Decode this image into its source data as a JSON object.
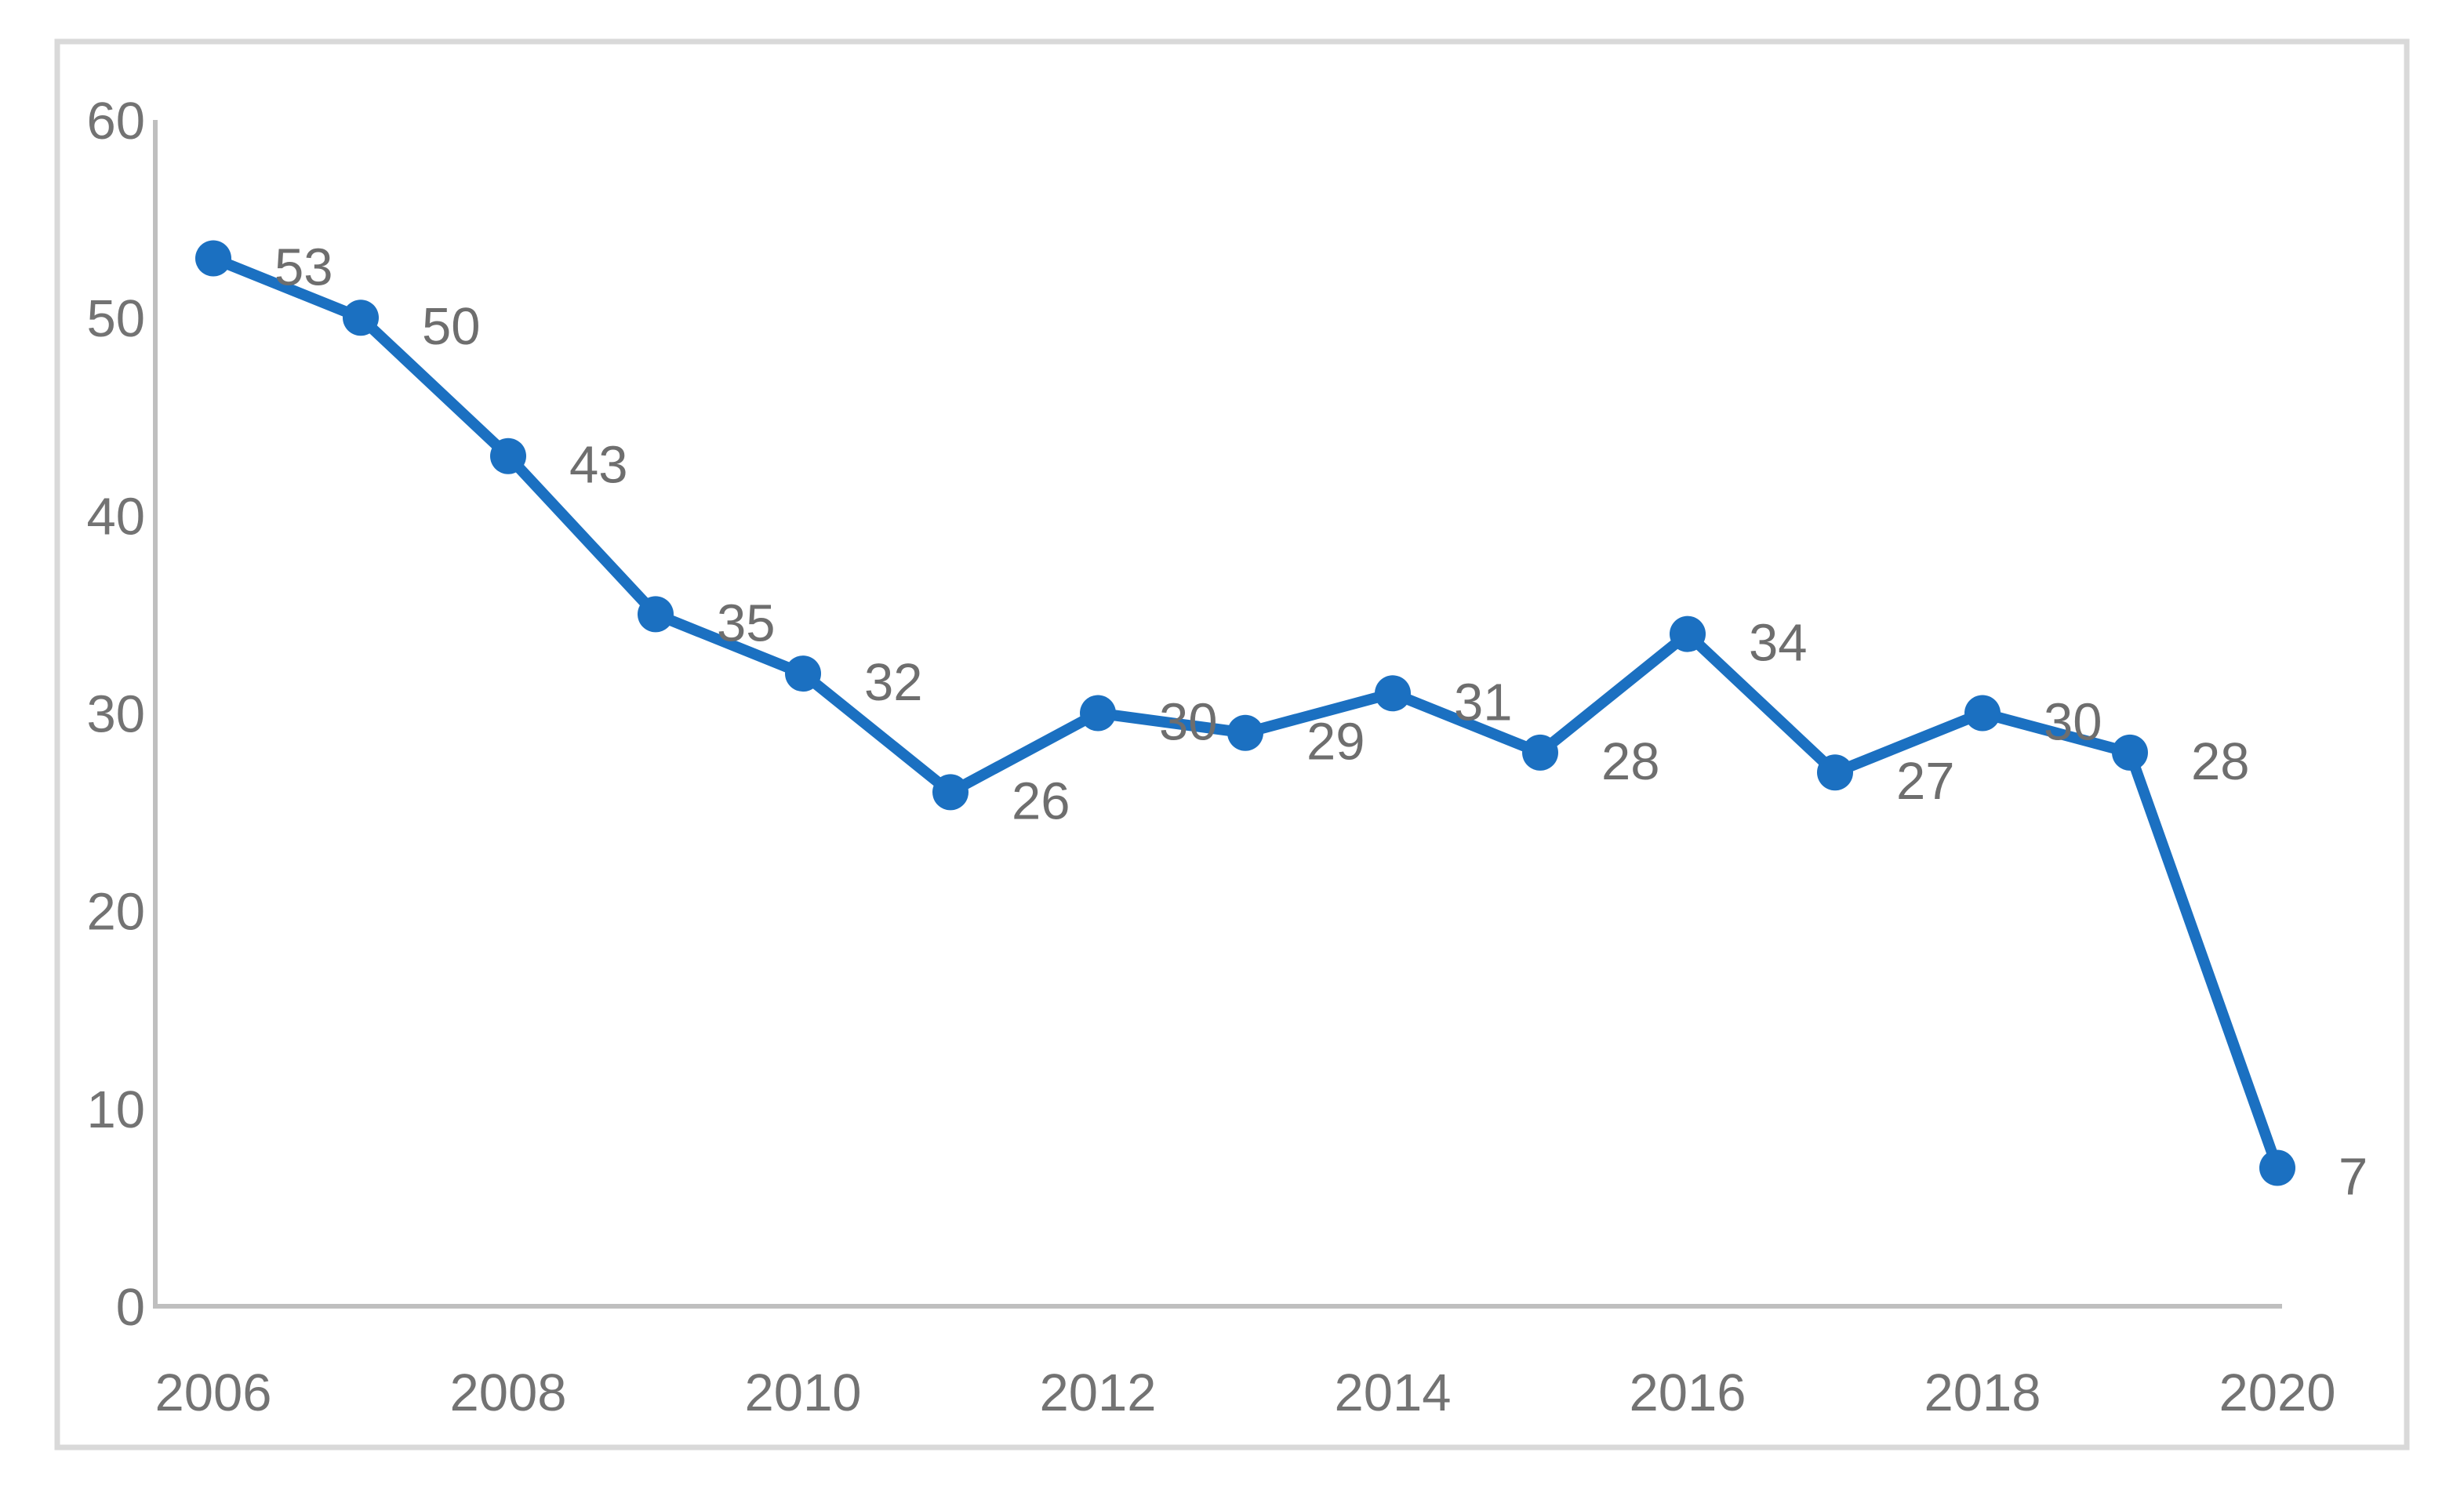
{
  "page": {
    "background": "#FFFFFF"
  },
  "chart_data": {
    "type": "line",
    "title": "",
    "xlabel": "",
    "ylabel": "",
    "x": [
      2006,
      2007,
      2008,
      2009,
      2010,
      2011,
      2012,
      2013,
      2014,
      2015,
      2016,
      2017,
      2018,
      2019,
      2020
    ],
    "series": [
      {
        "name": "",
        "values": [
          53,
          50,
          43,
          35,
          32,
          26,
          30,
          29,
          31,
          28,
          34,
          27,
          30,
          28,
          7
        ]
      }
    ],
    "data_labels": [
      53,
      50,
      43,
      35,
      32,
      26,
      30,
      29,
      31,
      28,
      34,
      27,
      30,
      28,
      7
    ],
    "ylim": [
      0,
      60
    ],
    "yticks": [
      0,
      10,
      20,
      30,
      40,
      50,
      60
    ],
    "xticks": [
      2006,
      2008,
      2010,
      2012,
      2014,
      2016,
      2018,
      2020
    ],
    "grid": false,
    "legend": "none",
    "marker": "circle",
    "colors": {
      "line": "#1B70C1",
      "marker": "#1B70C1",
      "tick_label": "#737373",
      "data_label": "#6E6E6E",
      "axis_line": "#BFBFBF",
      "frame_border": "#D9D9D9",
      "background": "#FFFFFF"
    }
  }
}
